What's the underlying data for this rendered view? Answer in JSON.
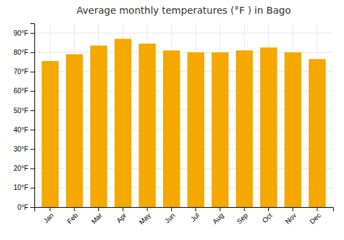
{
  "chart_data": {
    "type": "bar",
    "title": "Average monthly temperatures (°F ) in Bago",
    "categories": [
      "Jan",
      "Feb",
      "Mar",
      "Apr",
      "May",
      "Jun",
      "Jul",
      "Aug",
      "Sep",
      "Oct",
      "Nov",
      "Dec"
    ],
    "values": [
      75.5,
      79.0,
      83.5,
      87.0,
      84.5,
      81.0,
      80.0,
      80.0,
      81.0,
      82.5,
      80.0,
      76.5
    ],
    "color": "#F5A800",
    "ylim": [
      0,
      95
    ],
    "yticks": [
      {
        "value": 0,
        "label": "0°F"
      },
      {
        "value": 10,
        "label": "10°F"
      },
      {
        "value": 20,
        "label": "20°F"
      },
      {
        "value": 30,
        "label": "30°F"
      },
      {
        "value": 40,
        "label": "40°F"
      },
      {
        "value": 50,
        "label": "50°F"
      },
      {
        "value": 60,
        "label": "60°F"
      },
      {
        "value": 70,
        "label": "70°F"
      },
      {
        "value": 80,
        "label": "80°F"
      },
      {
        "value": 90,
        "label": "90°F"
      }
    ],
    "grid": true
  }
}
